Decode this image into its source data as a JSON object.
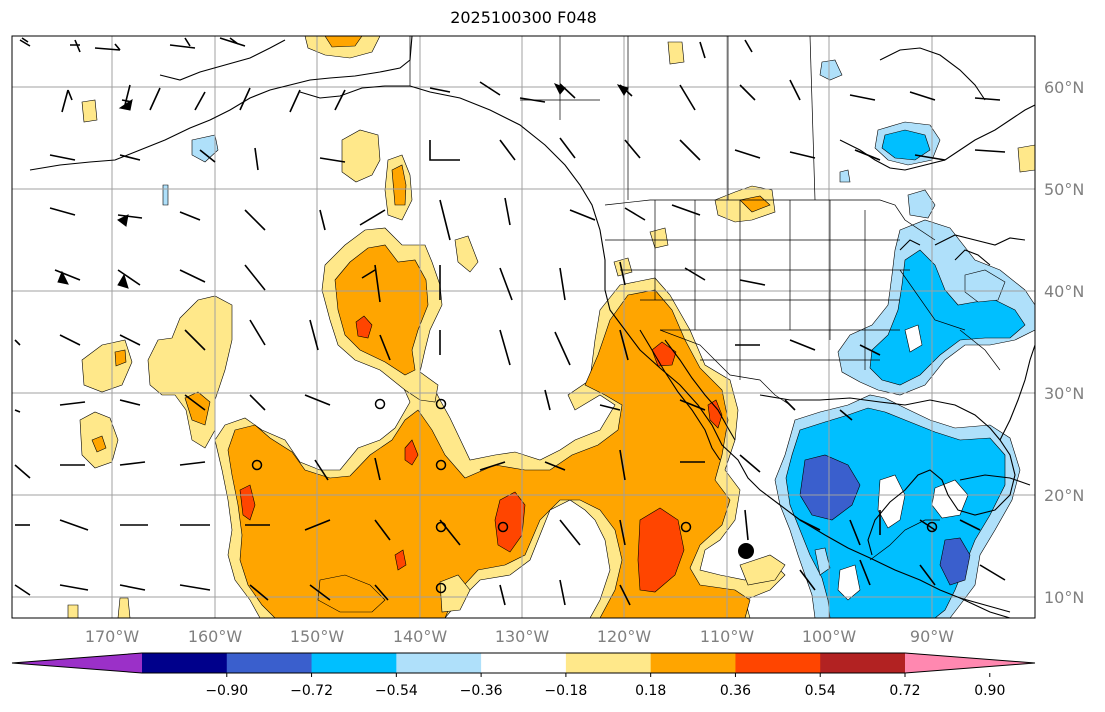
{
  "title": "2025100300 F048",
  "lat_labels": [
    "60°N",
    "50°N",
    "40°N",
    "30°N",
    "20°N",
    "10°N"
  ],
  "lon_labels": [
    "170°W",
    "160°W",
    "150°W",
    "140°W",
    "130°W",
    "120°W",
    "110°W",
    "100°W",
    "90°W"
  ],
  "colorbar": {
    "colors": [
      "#9b30c8",
      "#00008b",
      "#3a5fcd",
      "#00bfff",
      "#afe0fa",
      "#ffffff",
      "#ffe88a",
      "#ffa500",
      "#ff4500",
      "#b22222",
      "#ff88b0"
    ],
    "tick_labels": [
      "−0.90",
      "−0.72",
      "−0.54",
      "−0.36",
      "−0.18",
      "0.18",
      "0.36",
      "0.54",
      "0.72",
      "0.90"
    ]
  },
  "markers": {
    "open_circles_label": "circle-marker",
    "filled_circle_label": "tropical-center-marker"
  }
}
